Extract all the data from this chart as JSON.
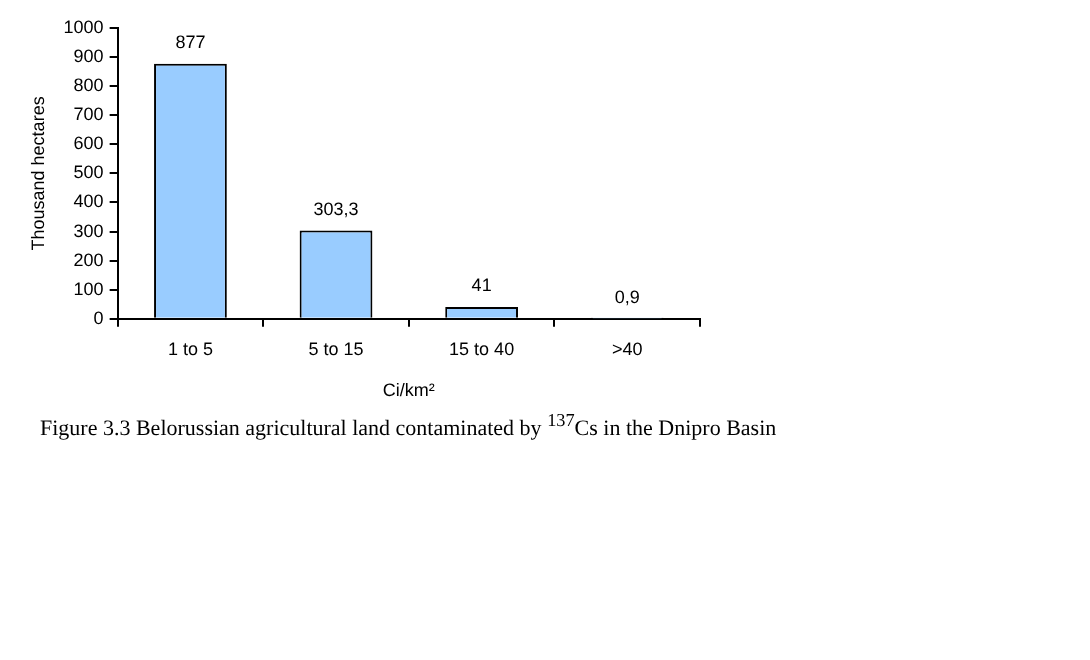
{
  "chart_data": {
    "type": "bar",
    "xlabel": "Ci/km²",
    "ylabel": "Thousand hectares",
    "categories": [
      "1 to 5",
      "5 to 15",
      "15 to 40",
      ">40"
    ],
    "values": [
      877,
      303.3,
      41,
      0.9
    ],
    "value_labels": [
      "877",
      "303,3",
      "41",
      "0,9"
    ],
    "color": "#99ccff",
    "ylim": [
      0,
      1000
    ],
    "yticks": [
      0,
      100,
      200,
      300,
      400,
      500,
      600,
      700,
      800,
      900,
      1000
    ],
    "grid": false,
    "legend": false,
    "annotations": [
      "Figure 3.3 Belorussian agricultural land contaminated by $^{137}$Cs in the Dnipro Basin"
    ]
  }
}
